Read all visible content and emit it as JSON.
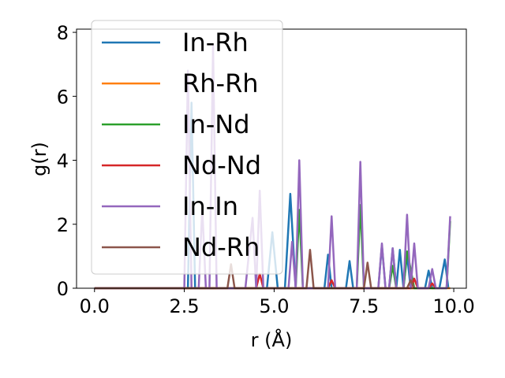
{
  "chart_data": {
    "type": "line",
    "xlabel": "r (Å)",
    "ylabel": "g(r)",
    "xlim": [
      -0.5,
      10.35
    ],
    "ylim": [
      0,
      8.1
    ],
    "xticks": [
      0.0,
      2.5,
      5.0,
      7.5,
      10.0
    ],
    "xtick_labels": [
      "0.0",
      "2.5",
      "5.0",
      "7.5",
      "10.0"
    ],
    "yticks": [
      0,
      2,
      4,
      6,
      8
    ],
    "ytick_labels": [
      "0",
      "2",
      "4",
      "6",
      "8"
    ],
    "grid": false,
    "legend_position": "upper-left",
    "series": [
      {
        "name": "In-Rh",
        "color": "#1f77b4",
        "x": [
          0,
          2.6,
          2.7,
          2.8,
          4.8,
          4.95,
          5.1,
          5.3,
          5.45,
          5.6,
          6.4,
          6.5,
          6.6,
          7.0,
          7.1,
          7.2,
          7.9,
          8.0,
          8.1,
          8.2,
          8.3,
          8.4,
          8.5,
          8.6,
          8.7,
          8.8,
          9.2,
          9.3,
          9.4,
          9.6,
          9.75,
          9.85
        ],
        "y": [
          0,
          0,
          5.8,
          0,
          0,
          1.75,
          0,
          0,
          2.95,
          0,
          0,
          1.05,
          0,
          0,
          0.85,
          0,
          0,
          1.35,
          0,
          0,
          1.25,
          0,
          1.2,
          0,
          1.05,
          0,
          0,
          0.55,
          0,
          0,
          0.9,
          0
        ]
      },
      {
        "name": "Rh-Rh",
        "color": "#ff7f0e",
        "x": [
          0,
          9.9
        ],
        "y": [
          0,
          0
        ]
      },
      {
        "name": "In-Nd",
        "color": "#2ca02c",
        "x": [
          0,
          5.6,
          5.7,
          5.8,
          7.3,
          7.4,
          7.5,
          8.2,
          8.3,
          8.4,
          8.6,
          8.7,
          8.8,
          8.9,
          9.8,
          9.9
        ],
        "y": [
          0,
          0,
          2.45,
          0,
          0,
          2.6,
          0,
          0,
          0.7,
          0,
          0,
          1.15,
          0.6,
          0,
          0,
          2.1
        ]
      },
      {
        "name": "Nd-Nd",
        "color": "#d62728",
        "x": [
          0,
          4.5,
          4.6,
          4.7,
          6.5,
          6.6,
          6.7,
          8.8,
          8.9,
          9.0,
          9.3,
          9.4,
          9.5
        ],
        "y": [
          0,
          0,
          0.45,
          0,
          0,
          0.25,
          0,
          0,
          0.3,
          0,
          0,
          0.15,
          0
        ]
      },
      {
        "name": "In-In",
        "color": "#9467bd",
        "x": [
          0,
          2.5,
          2.6,
          2.7,
          2.9,
          3.0,
          3.1,
          3.2,
          3.3,
          3.4,
          4.2,
          4.4,
          4.5,
          4.6,
          4.7,
          5.4,
          5.5,
          5.6,
          5.7,
          5.8,
          6.5,
          6.6,
          6.7,
          7.3,
          7.4,
          7.5,
          7.9,
          8.0,
          8.1,
          8.2,
          8.3,
          8.4,
          8.6,
          8.7,
          8.8,
          8.9,
          9.0,
          9.3,
          9.4,
          9.5,
          9.8,
          9.9
        ],
        "y": [
          0,
          0,
          6.8,
          0,
          0,
          2.5,
          0,
          0,
          7.6,
          0,
          0,
          2.2,
          0,
          3.05,
          0,
          0,
          1.45,
          0,
          4.0,
          0,
          0,
          2.25,
          0,
          0,
          3.95,
          0,
          0,
          1.4,
          0,
          0,
          1.25,
          0,
          0,
          2.3,
          0,
          1.4,
          0,
          0,
          0.6,
          0,
          0,
          2.25
        ]
      },
      {
        "name": "Nd-Rh",
        "color": "#8c564b",
        "x": [
          0,
          3.7,
          3.8,
          3.9,
          5.9,
          6.0,
          6.1,
          7.5,
          7.6,
          7.7,
          8.7,
          8.8,
          8.9
        ],
        "y": [
          0,
          0,
          0.75,
          0,
          0,
          1.2,
          0,
          0,
          0.8,
          0,
          0,
          0.25,
          0
        ]
      }
    ]
  }
}
